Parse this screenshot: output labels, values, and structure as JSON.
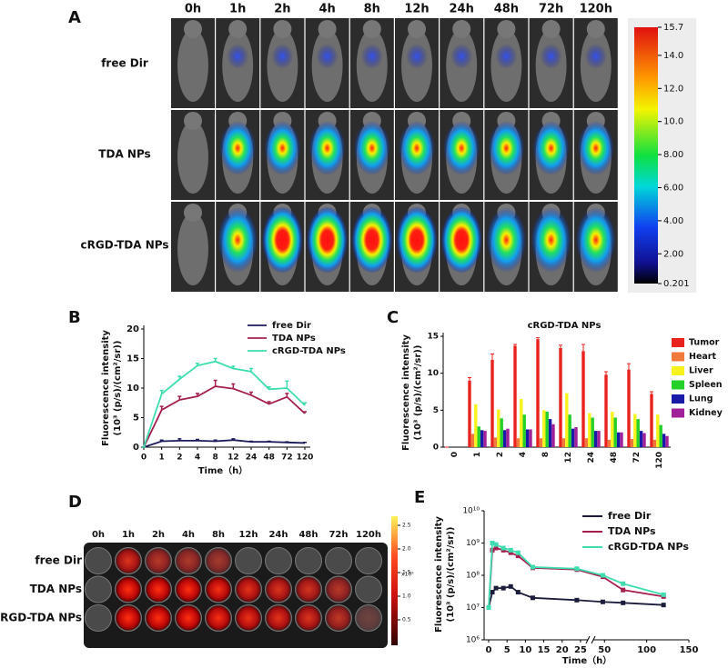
{
  "panel_labels": [
    "A",
    "B",
    "C",
    "D",
    "E"
  ],
  "panel_a": {
    "timepoints": [
      "0h",
      "1h",
      "2h",
      "4h",
      "8h",
      "12h",
      "24h",
      "48h",
      "72h",
      "120h"
    ],
    "rows": [
      "free Dir",
      "TDA NPs",
      "cRGD-TDA NPs"
    ],
    "colorbar_ticks": [
      15.7,
      {
        "value": 14,
        "label": "14.0"
      },
      {
        "value": 12,
        "label": "12.0"
      },
      {
        "value": 10,
        "label": "10.0"
      },
      {
        "value": 8,
        "label": "8.00"
      },
      {
        "value": 6,
        "label": "6.00"
      },
      {
        "value": 4,
        "label": "4.00"
      },
      {
        "value": 2,
        "label": "2.00"
      },
      0.201
    ]
  },
  "panel_d": {
    "timepoints": [
      "0h",
      "1h",
      "2h",
      "4h",
      "8h",
      "12h",
      "24h",
      "48h",
      "72h",
      "120h"
    ],
    "rows": [
      "free Dir",
      "TDA NPs",
      "cRGD-TDA NPs"
    ],
    "colorbar_ticks": [
      2.5,
      {
        "value": 2,
        "label": "2.0"
      },
      1.5,
      {
        "value": 1,
        "label": "1.0"
      },
      0.5
    ],
    "colorbar_unit": "x10⁹"
  },
  "chart_data": [
    {
      "type": "line",
      "categories": [
        "0",
        "1",
        "2",
        "4",
        "8",
        "12",
        "24",
        "48",
        "72",
        "120"
      ],
      "xlabel": "Time（h）",
      "ylabel": [
        "Fluorescence intensity",
        "(10³ (p/s)/(cm²/sr))"
      ],
      "ylim": [
        0,
        20
      ],
      "yticks": [
        0,
        5,
        10,
        15,
        20
      ],
      "series": [
        {
          "name": "free Dir",
          "color": "#1c1c5c",
          "values": [
            0,
            1.0,
            1.1,
            1.1,
            1.0,
            1.2,
            0.9,
            0.9,
            0.8,
            0.7
          ],
          "errors": [
            0,
            0.2,
            0.3,
            0.2,
            0.2,
            0.2,
            0.1,
            0.1,
            0.1,
            0.1
          ]
        },
        {
          "name": "TDA NPs",
          "color": "#a3204f",
          "values": [
            0,
            6.3,
            8.0,
            8.6,
            10.3,
            9.9,
            8.8,
            7.3,
            8.5,
            5.7
          ],
          "errors": [
            0,
            0.6,
            0.6,
            0.5,
            1.0,
            0.8,
            0.5,
            0.4,
            0.6,
            0.3
          ]
        },
        {
          "name": "cRGD-TDA NPs",
          "color": "#3fdcb0",
          "values": [
            0,
            9.0,
            11.5,
            13.8,
            14.5,
            13.3,
            12.8,
            9.8,
            10.0,
            7.1
          ],
          "errors": [
            0,
            0.6,
            0.5,
            0.4,
            0.5,
            0.4,
            0.5,
            0.4,
            1.2,
            0.4
          ]
        }
      ]
    },
    {
      "type": "bar",
      "title": "cRGD-TDA NPs",
      "categories": [
        "0",
        "1",
        "2",
        "4",
        "8",
        "12",
        "24",
        "48",
        "72",
        "120"
      ],
      "ylabel": [
        "Fluorescence intensity",
        "(10³ (p/s)/(cm²/sr))"
      ],
      "ylim": [
        0,
        15
      ],
      "yticks": [
        0,
        5,
        10,
        15
      ],
      "series": [
        {
          "name": "Tumor",
          "color": "#e8221c",
          "values": [
            0,
            9.0,
            11.8,
            13.7,
            14.6,
            13.4,
            13.0,
            9.8,
            10.5,
            7.2
          ],
          "errors": [
            0,
            0.4,
            0.8,
            0.2,
            0.2,
            0.4,
            0.9,
            0.4,
            0.8,
            0.3
          ]
        },
        {
          "name": "Heart",
          "color": "#f07a3c",
          "values": [
            0,
            1.8,
            1.3,
            1.2,
            1.2,
            1.2,
            1.2,
            1.0,
            1.1,
            1.0
          ]
        },
        {
          "name": "Liver",
          "color": "#f5f21e",
          "values": [
            0,
            5.8,
            5.1,
            6.5,
            5.0,
            7.3,
            4.6,
            4.8,
            4.5,
            4.4
          ]
        },
        {
          "name": "Spleen",
          "color": "#25d02a",
          "values": [
            0,
            2.8,
            3.9,
            4.4,
            4.8,
            4.4,
            4.0,
            4.0,
            3.8,
            3.0
          ]
        },
        {
          "name": "Lung",
          "color": "#1a1aa8",
          "values": [
            0,
            2.3,
            2.3,
            2.4,
            3.8,
            2.5,
            2.2,
            2.0,
            2.2,
            1.8
          ]
        },
        {
          "name": "Kidney",
          "color": "#a0209a",
          "values": [
            0,
            2.2,
            2.5,
            2.4,
            3.1,
            2.7,
            2.2,
            2.0,
            1.9,
            1.5
          ]
        }
      ]
    },
    {
      "type": "line",
      "x": [
        0,
        1,
        2,
        4,
        6,
        8,
        12,
        24,
        48,
        72,
        120
      ],
      "xlabel": "Time（h）",
      "ylabel": [
        "Fluorescence intensity",
        "(10³ (p/s)/(cm²/sr))"
      ],
      "log_y": true,
      "ylim": [
        1000000,
        10000000000
      ],
      "yticks": [
        {
          "value": 1000000,
          "label": "10⁶"
        },
        {
          "value": 10000000,
          "label": "10⁷"
        },
        {
          "value": 100000000,
          "label": "10⁸"
        },
        {
          "value": 1000000000,
          "label": "10⁹"
        },
        {
          "value": 10000000000,
          "label": "10¹⁰"
        }
      ],
      "xlim": [
        0,
        150
      ],
      "x_break": [
        27,
        40
      ],
      "xticks": [
        0,
        5,
        10,
        15,
        20,
        25,
        50,
        100,
        150
      ],
      "series": [
        {
          "name": "free Dir",
          "color": "#1c1c3c",
          "values": [
            10000000,
            30000000,
            40000000,
            40000000,
            45000000,
            30000000,
            20000000,
            17000000,
            15000000,
            14000000,
            12000000
          ]
        },
        {
          "name": "TDA NPs",
          "color": "#a3204f",
          "values": [
            10000000,
            600000000,
            700000000,
            600000000,
            500000000,
            400000000,
            170000000,
            150000000,
            90000000,
            35000000,
            22000000
          ]
        },
        {
          "name": "cRGD-TDA NPs",
          "color": "#3fdcb0",
          "values": [
            10000000,
            1000000000,
            900000000,
            700000000,
            600000000,
            500000000,
            180000000,
            160000000,
            100000000,
            55000000,
            25000000
          ]
        }
      ]
    }
  ]
}
